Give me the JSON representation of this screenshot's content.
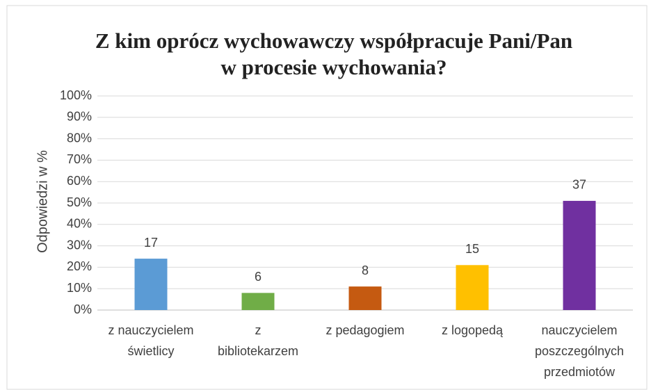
{
  "chart_data": {
    "type": "bar",
    "title": [
      "Z kim oprócz wychowawczy współpracuje Pani/Pan",
      "w procesie wychowania?"
    ],
    "y_label": "Odpowiedzi w %",
    "categories": [
      [
        "z nauczycielem",
        "świetlicy"
      ],
      [
        "z",
        "bibliotekarzem"
      ],
      [
        "z pedagogiem"
      ],
      [
        "z logopedą"
      ],
      [
        "nauczycielem",
        "poszczególnych",
        "przedmiotów"
      ]
    ],
    "values": [
      24,
      8,
      11,
      21,
      51
    ],
    "counts": [
      17,
      6,
      8,
      15,
      37
    ],
    "colors": [
      "#5b9bd5",
      "#70ad47",
      "#c55a11",
      "#ffc000",
      "#7030a0"
    ],
    "ylim": [
      0,
      100
    ],
    "yticks": [
      {
        "value": 0,
        "label": "0%"
      },
      {
        "value": 10,
        "label": "10%"
      },
      {
        "value": 20,
        "label": "20%"
      },
      {
        "value": 30,
        "label": "30%"
      },
      {
        "value": 40,
        "label": "40%"
      },
      {
        "value": 50,
        "label": "50%"
      },
      {
        "value": 60,
        "label": "60%"
      },
      {
        "value": 70,
        "label": "70%"
      },
      {
        "value": 80,
        "label": "80%"
      },
      {
        "value": 90,
        "label": "90%"
      },
      {
        "value": 100,
        "label": "100%"
      }
    ],
    "grid": true
  }
}
